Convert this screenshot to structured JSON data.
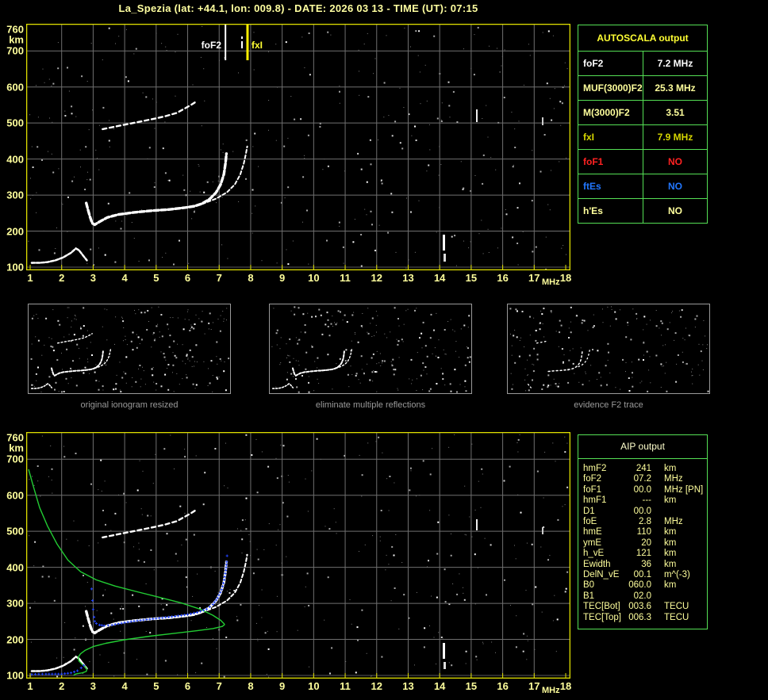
{
  "title": "La_Spezia (lat: +44.1, lon: 009.8) - DATE: 2026 03 13 - TIME (UT): 07:15",
  "colors": {
    "background": "#000000",
    "title_text": "#ffffa0",
    "axis_text": "#ffff9c",
    "plot_border": "#dede00",
    "grid": "#6f6f6f",
    "table_border": "#55e055",
    "trace_white": "#ffffff",
    "profile_green": "#22cc33",
    "restored_blue": "#2244ff",
    "foF2_marker": "#ffffff",
    "fxI_marker": "#ffee00"
  },
  "axis": {
    "x_ticks": [
      "1",
      "2",
      "3",
      "4",
      "5",
      "6",
      "7",
      "8",
      "9",
      "10",
      "11",
      "12",
      "13",
      "14",
      "15",
      "16",
      "17",
      "18"
    ],
    "x_unit": "MHz",
    "y_ticks": [
      "760",
      "700",
      "600",
      "500",
      "400",
      "300",
      "200",
      "100"
    ],
    "y_tick_km": [
      760,
      700,
      600,
      500,
      400,
      300,
      200,
      100
    ],
    "y_unit": "km",
    "x_range_mhz": [
      1,
      18
    ],
    "y_range_km": [
      100,
      760
    ]
  },
  "top_plot": {
    "foF2_label": "foF2",
    "fxI_label": "fxI",
    "foF2_mhz": 7.2,
    "fxI_mhz": 7.9
  },
  "autoscala_table": {
    "header": "AUTOSCALA output",
    "rows": [
      {
        "param": "foF2",
        "value": "7.2 MHz",
        "color": "#ffffff"
      },
      {
        "param": "MUF(3000)F2",
        "value": "25.3 MHz",
        "color": "#ffff9c"
      },
      {
        "param": "M(3000)F2",
        "value": "3.51",
        "color": "#ffff9c"
      },
      {
        "param": "fxI",
        "value": "7.9 MHz",
        "color": "#d6d600"
      },
      {
        "param": "foF1",
        "value": "NO",
        "color": "#ff2222"
      },
      {
        "param": "ftEs",
        "value": "NO",
        "color": "#2277ff"
      },
      {
        "param": "h'Es",
        "value": "NO",
        "color": "#ffff9c"
      }
    ]
  },
  "thumbnails": [
    {
      "caption": "original ionogram resized"
    },
    {
      "caption": "eliminate multiple reflections"
    },
    {
      "caption": "evidence F2 trace"
    }
  ],
  "aip_table": {
    "header": "AIP output",
    "rows": [
      {
        "param": "hmF2",
        "value": "241",
        "unit": "km",
        "note": ""
      },
      {
        "param": "foF2",
        "value": "07.2",
        "unit": "MHz",
        "note": ""
      },
      {
        "param": "foF1",
        "value": "00.0",
        "unit": "MHz",
        "note": "[PN]"
      },
      {
        "param": "hmF1",
        "value": "---",
        "unit": "km",
        "note": ""
      },
      {
        "param": "D1",
        "value": "00.0",
        "unit": "",
        "note": ""
      },
      {
        "param": "foE",
        "value": "2.8",
        "unit": "MHz",
        "note": ""
      },
      {
        "param": "hmE",
        "value": "110",
        "unit": "km",
        "note": ""
      },
      {
        "param": "ymE",
        "value": "20",
        "unit": "km",
        "note": ""
      },
      {
        "param": "h_vE",
        "value": "121",
        "unit": "km",
        "note": ""
      },
      {
        "param": "Ewidth",
        "value": "36",
        "unit": "km",
        "note": ""
      },
      {
        "param": "DelN_vE",
        "value": "00.1",
        "unit": "m^(-3)",
        "note": ""
      },
      {
        "param": "B0",
        "value": "060.0",
        "unit": "km",
        "note": ""
      },
      {
        "param": "B1",
        "value": "02.0",
        "unit": "",
        "note": ""
      },
      {
        "param": "TEC[Bot]",
        "value": "003.6",
        "unit": "TECU",
        "note": ""
      },
      {
        "param": "TEC[Top]",
        "value": "006.3",
        "unit": "TECU",
        "note": ""
      }
    ]
  },
  "chart_data": [
    {
      "id": "top_ionogram",
      "type": "scatter",
      "xlabel": "MHz",
      "ylabel": "km",
      "xlim": [
        1,
        18
      ],
      "ylim": [
        95,
        775
      ],
      "grid": true,
      "markers": [
        {
          "name": "foF2",
          "label": "foF2",
          "x_mhz": 7.2,
          "color": "#ffffff"
        },
        {
          "name": "fxI",
          "label": "fxI",
          "x_mhz": 7.9,
          "color": "#ffee00"
        }
      ],
      "series": [
        {
          "name": "E-layer echo trace",
          "color": "#ffffff",
          "points_mhz_km": [
            [
              1.05,
              112
            ],
            [
              1.3,
              112
            ],
            [
              1.55,
              114
            ],
            [
              1.8,
              119
            ],
            [
              2.05,
              127
            ],
            [
              2.3,
              140
            ],
            [
              2.45,
              152
            ],
            [
              2.55,
              147
            ],
            [
              2.7,
              130
            ],
            [
              2.8,
              119
            ]
          ]
        },
        {
          "name": "F2 ordinary echo trace",
          "color": "#ffffff",
          "points_mhz_km": [
            [
              2.78,
              278
            ],
            [
              2.84,
              258
            ],
            [
              2.9,
              240
            ],
            [
              2.97,
              222
            ],
            [
              3.05,
              218
            ],
            [
              3.2,
              226
            ],
            [
              3.45,
              238
            ],
            [
              3.8,
              246
            ],
            [
              4.3,
              252
            ],
            [
              4.9,
              257
            ],
            [
              5.4,
              260
            ],
            [
              5.9,
              265
            ],
            [
              6.2,
              269
            ],
            [
              6.45,
              276
            ],
            [
              6.7,
              289
            ],
            [
              6.9,
              307
            ],
            [
              7.05,
              330
            ],
            [
              7.15,
              358
            ],
            [
              7.2,
              388
            ],
            [
              7.23,
              415
            ]
          ]
        },
        {
          "name": "F2 extraordinary echo trace",
          "color": "#ffffff",
          "points_mhz_km": [
            [
              5.6,
              262
            ],
            [
              6.0,
              267
            ],
            [
              6.45,
              275
            ],
            [
              6.9,
              290
            ],
            [
              7.25,
              308
            ],
            [
              7.5,
              330
            ],
            [
              7.67,
              357
            ],
            [
              7.78,
              387
            ],
            [
              7.85,
              415
            ],
            [
              7.89,
              435
            ]
          ]
        },
        {
          "name": "second-hop multiple reflection trace",
          "color": "#ffffff",
          "points_mhz_km": [
            [
              3.3,
              483
            ],
            [
              3.7,
              490
            ],
            [
              4.1,
              497
            ],
            [
              4.55,
              505
            ],
            [
              4.95,
              512
            ],
            [
              5.3,
              519
            ],
            [
              5.65,
              528
            ],
            [
              5.9,
              540
            ],
            [
              6.1,
              550
            ],
            [
              6.3,
              561
            ]
          ]
        }
      ]
    },
    {
      "id": "bottom_ionogram",
      "type": "scatter",
      "xlabel": "MHz",
      "ylabel": "km",
      "xlim": [
        1,
        18
      ],
      "ylim": [
        95,
        775
      ],
      "grid": true,
      "note_same_echo_traces_as": "top_ionogram",
      "series": [
        {
          "name": "electron density profile (plasma frequency vs height)",
          "color": "#22cc33",
          "points_mhz_km": [
            [
              0.95,
              672
            ],
            [
              1.1,
              625
            ],
            [
              1.3,
              566
            ],
            [
              1.55,
              515
            ],
            [
              1.85,
              465
            ],
            [
              2.2,
              420
            ],
            [
              2.6,
              388
            ],
            [
              3.1,
              365
            ],
            [
              3.7,
              348
            ],
            [
              4.4,
              332
            ],
            [
              5.1,
              317
            ],
            [
              5.8,
              301
            ],
            [
              6.4,
              284
            ],
            [
              6.8,
              267
            ],
            [
              7.05,
              253
            ],
            [
              7.16,
              243
            ],
            [
              7.17,
              241
            ],
            [
              7.1,
              236
            ],
            [
              6.8,
              230
            ],
            [
              6.3,
              224
            ],
            [
              5.6,
              217
            ],
            [
              4.8,
              209
            ],
            [
              4.0,
              199
            ],
            [
              3.4,
              189
            ],
            [
              3.0,
              180
            ],
            [
              2.75,
              170
            ],
            [
              2.6,
              160
            ],
            [
              2.52,
              150
            ],
            [
              2.55,
              140
            ],
            [
              2.65,
              131
            ],
            [
              2.75,
              124
            ],
            [
              2.8,
              117
            ],
            [
              2.78,
              111
            ],
            [
              2.65,
              107
            ],
            [
              2.5,
              105
            ],
            [
              2.42,
              103
            ],
            [
              2.38,
              100
            ]
          ]
        },
        {
          "name": "restored scaled trace",
          "color": "#2244ff",
          "marker": "+",
          "segments_mhz_km": [
            [
              [
                1.05,
                103
              ],
              [
                1.5,
                104
              ],
              [
                2.0,
                104
              ],
              [
                2.3,
                107
              ],
              [
                2.5,
                113
              ],
              [
                2.62,
                121
              ],
              [
                2.7,
                128
              ]
            ],
            [
              [
                2.95,
                340
              ]
            ],
            [
              [
                2.98,
                308
              ]
            ],
            [
              [
                3.0,
                283
              ]
            ],
            [
              [
                3.03,
                262
              ]
            ],
            [
              [
                3.05,
                250
              ],
              [
                3.1,
                244
              ],
              [
                3.2,
                240
              ],
              [
                3.35,
                238
              ],
              [
                3.6,
                240
              ],
              [
                3.9,
                245
              ],
              [
                4.3,
                251
              ],
              [
                4.8,
                256
              ],
              [
                5.2,
                260
              ],
              [
                5.6,
                264
              ],
              [
                6.0,
                269
              ],
              [
                6.3,
                275
              ],
              [
                6.6,
                284
              ],
              [
                6.8,
                297
              ],
              [
                6.95,
                315
              ],
              [
                7.08,
                338
              ],
              [
                7.16,
                365
              ],
              [
                7.21,
                392
              ],
              [
                7.24,
                415
              ]
            ],
            [
              [
                7.25,
                432
              ]
            ]
          ]
        }
      ]
    }
  ]
}
